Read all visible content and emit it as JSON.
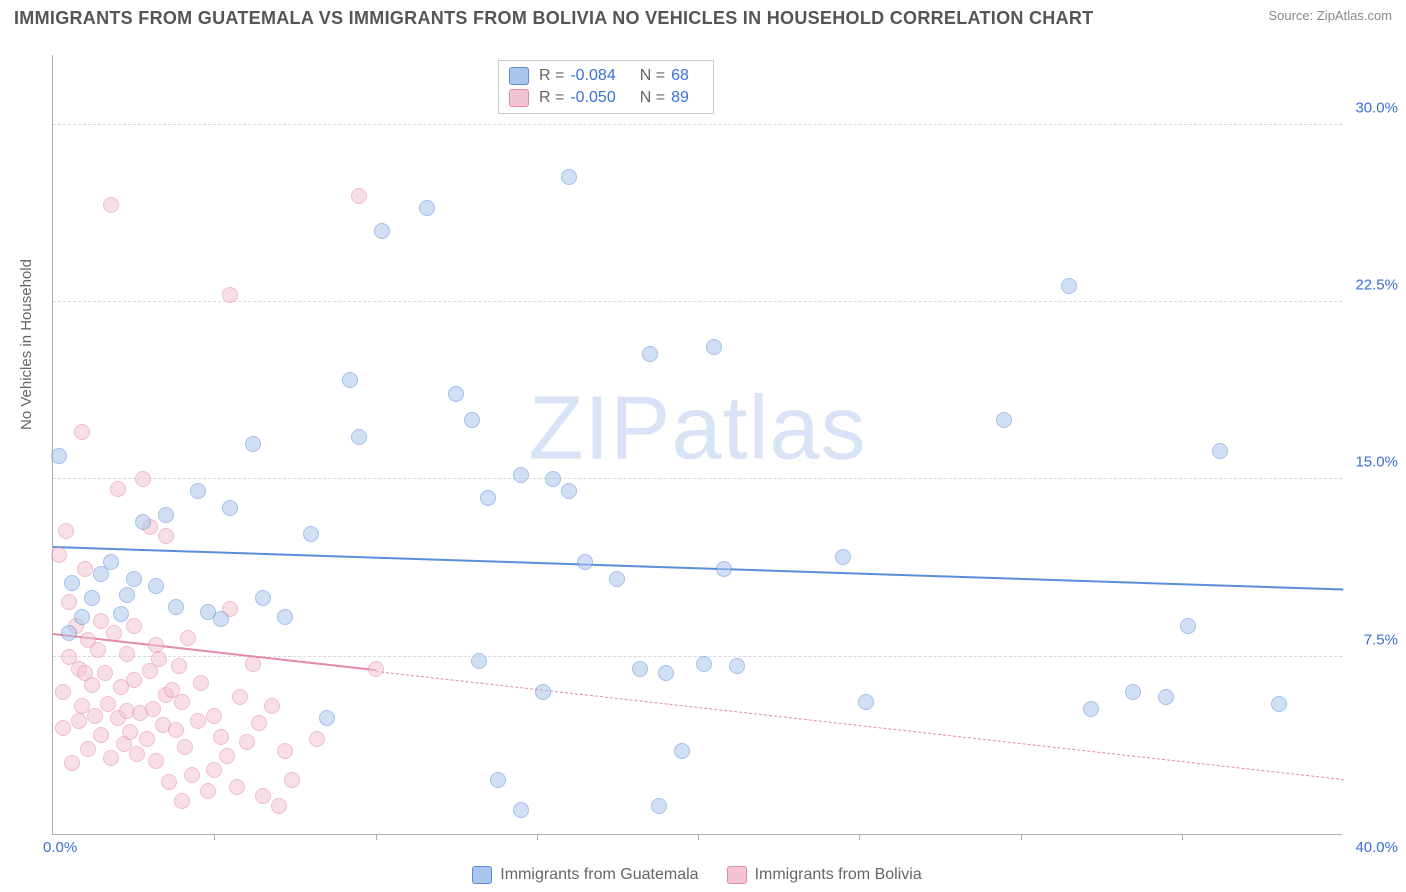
{
  "header": {
    "title": "IMMIGRANTS FROM GUATEMALA VS IMMIGRANTS FROM BOLIVIA NO VEHICLES IN HOUSEHOLD CORRELATION CHART",
    "source": "Source: ZipAtlas.com"
  },
  "watermark": {
    "text": "ZIPatlas",
    "color": "#d8e4f5"
  },
  "chart": {
    "type": "scatter",
    "background_color": "#ffffff",
    "grid_color": "#d8d8d8",
    "axis_color": "#b0b0b0",
    "ylabel": "No Vehicles in Household",
    "label_fontsize": 15,
    "label_color": "#666666",
    "ylim": [
      0,
      33
    ],
    "yticks": [
      7.5,
      15.0,
      22.5,
      30.0
    ],
    "ytick_labels": [
      "7.5%",
      "15.0%",
      "22.5%",
      "30.0%"
    ],
    "xlim": [
      0,
      40
    ],
    "xtick_step": 5,
    "xtick_origin": "0.0%",
    "xtick_max": "40.0%",
    "tick_color": "#3b6fd6",
    "tick_fontsize": 15,
    "marker_radius": 8,
    "marker_opacity": 0.55,
    "marker_border_width": 1.2,
    "series": [
      {
        "name": "Immigrants from Guatemala",
        "fill": "#aac6ec",
        "stroke": "#5b8ed8",
        "trend": {
          "x1": 0,
          "y1": 12.1,
          "x2": 40,
          "y2": 10.3,
          "solid_until_x": 40,
          "width": 2.6,
          "dash": "none"
        },
        "points": [
          [
            0.2,
            16.0
          ],
          [
            0.5,
            8.5
          ],
          [
            0.6,
            10.6
          ],
          [
            0.9,
            9.2
          ],
          [
            1.2,
            10.0
          ],
          [
            1.5,
            11.0
          ],
          [
            1.8,
            11.5
          ],
          [
            2.1,
            9.3
          ],
          [
            2.3,
            10.1
          ],
          [
            2.5,
            10.8
          ],
          [
            2.8,
            13.2
          ],
          [
            3.2,
            10.5
          ],
          [
            3.5,
            13.5
          ],
          [
            3.8,
            9.6
          ],
          [
            4.5,
            14.5
          ],
          [
            4.8,
            9.4
          ],
          [
            5.2,
            9.1
          ],
          [
            5.5,
            13.8
          ],
          [
            6.2,
            16.5
          ],
          [
            6.5,
            10.0
          ],
          [
            7.2,
            9.2
          ],
          [
            8.0,
            12.7
          ],
          [
            8.5,
            4.9
          ],
          [
            9.2,
            19.2
          ],
          [
            9.5,
            16.8
          ],
          [
            10.2,
            25.5
          ],
          [
            11.6,
            26.5
          ],
          [
            12.5,
            18.6
          ],
          [
            13.0,
            17.5
          ],
          [
            13.2,
            7.3
          ],
          [
            13.5,
            14.2
          ],
          [
            13.8,
            2.3
          ],
          [
            14.5,
            1.0
          ],
          [
            14.5,
            15.2
          ],
          [
            15.2,
            6.0
          ],
          [
            15.5,
            15.0
          ],
          [
            16.0,
            14.5
          ],
          [
            16.0,
            27.8
          ],
          [
            16.5,
            11.5
          ],
          [
            17.5,
            10.8
          ],
          [
            18.2,
            7.0
          ],
          [
            18.5,
            20.3
          ],
          [
            18.8,
            1.2
          ],
          [
            19.0,
            6.8
          ],
          [
            19.5,
            3.5
          ],
          [
            20.2,
            7.2
          ],
          [
            20.5,
            20.6
          ],
          [
            20.8,
            11.2
          ],
          [
            21.2,
            7.1
          ],
          [
            24.5,
            11.7
          ],
          [
            25.2,
            5.6
          ],
          [
            29.5,
            17.5
          ],
          [
            31.5,
            23.2
          ],
          [
            32.2,
            5.3
          ],
          [
            33.5,
            6.0
          ],
          [
            34.5,
            5.8
          ],
          [
            35.2,
            8.8
          ],
          [
            36.2,
            16.2
          ],
          [
            38.0,
            5.5
          ]
        ]
      },
      {
        "name": "Immigrants from Bolivia",
        "fill": "#f3c5d2",
        "stroke": "#e48aa5",
        "trend": {
          "x1": 0,
          "y1": 8.4,
          "x2": 40,
          "y2": 2.3,
          "solid_until_x": 10,
          "width": 2.2,
          "dash": "5,5"
        },
        "points": [
          [
            0.2,
            11.8
          ],
          [
            0.3,
            4.5
          ],
          [
            0.3,
            6.0
          ],
          [
            0.4,
            12.8
          ],
          [
            0.5,
            7.5
          ],
          [
            0.5,
            9.8
          ],
          [
            0.6,
            3.0
          ],
          [
            0.7,
            8.8
          ],
          [
            0.8,
            4.8
          ],
          [
            0.8,
            7.0
          ],
          [
            0.9,
            17.0
          ],
          [
            0.9,
            5.4
          ],
          [
            1.0,
            6.8
          ],
          [
            1.0,
            11.2
          ],
          [
            1.1,
            3.6
          ],
          [
            1.1,
            8.2
          ],
          [
            1.2,
            6.3
          ],
          [
            1.3,
            5.0
          ],
          [
            1.4,
            7.8
          ],
          [
            1.5,
            9.0
          ],
          [
            1.5,
            4.2
          ],
          [
            1.6,
            6.8
          ],
          [
            1.7,
            5.5
          ],
          [
            1.8,
            3.2
          ],
          [
            1.8,
            26.6
          ],
          [
            1.9,
            8.5
          ],
          [
            2.0,
            4.9
          ],
          [
            2.0,
            14.6
          ],
          [
            2.1,
            6.2
          ],
          [
            2.2,
            3.8
          ],
          [
            2.3,
            5.2
          ],
          [
            2.3,
            7.6
          ],
          [
            2.4,
            4.3
          ],
          [
            2.5,
            6.5
          ],
          [
            2.5,
            8.8
          ],
          [
            2.6,
            3.4
          ],
          [
            2.7,
            5.1
          ],
          [
            2.8,
            15.0
          ],
          [
            2.9,
            4.0
          ],
          [
            3.0,
            13.0
          ],
          [
            3.0,
            6.9
          ],
          [
            3.1,
            5.3
          ],
          [
            3.2,
            8.0
          ],
          [
            3.2,
            3.1
          ],
          [
            3.3,
            7.4
          ],
          [
            3.4,
            4.6
          ],
          [
            3.5,
            12.6
          ],
          [
            3.5,
            5.9
          ],
          [
            3.6,
            2.2
          ],
          [
            3.7,
            6.1
          ],
          [
            3.8,
            4.4
          ],
          [
            3.9,
            7.1
          ],
          [
            4.0,
            1.4
          ],
          [
            4.0,
            5.6
          ],
          [
            4.1,
            3.7
          ],
          [
            4.2,
            8.3
          ],
          [
            4.3,
            2.5
          ],
          [
            4.5,
            4.8
          ],
          [
            4.6,
            6.4
          ],
          [
            4.8,
            1.8
          ],
          [
            5.0,
            5.0
          ],
          [
            5.0,
            2.7
          ],
          [
            5.2,
            4.1
          ],
          [
            5.4,
            3.3
          ],
          [
            5.5,
            9.5
          ],
          [
            5.5,
            22.8
          ],
          [
            5.7,
            2.0
          ],
          [
            5.8,
            5.8
          ],
          [
            6.0,
            3.9
          ],
          [
            6.2,
            7.2
          ],
          [
            6.4,
            4.7
          ],
          [
            6.5,
            1.6
          ],
          [
            6.8,
            5.4
          ],
          [
            7.0,
            1.2
          ],
          [
            7.2,
            3.5
          ],
          [
            7.4,
            2.3
          ],
          [
            8.2,
            4.0
          ],
          [
            9.5,
            27.0
          ],
          [
            10.0,
            7.0
          ]
        ]
      }
    ],
    "legend_top": [
      {
        "swatch_series": 0,
        "r_label": "R =",
        "r_value": "-0.084",
        "n_label": "N =",
        "n_value": "68"
      },
      {
        "swatch_series": 1,
        "r_label": "R =",
        "r_value": "-0.050",
        "n_label": "N =",
        "n_value": "89"
      }
    ],
    "legend_bottom": [
      {
        "swatch_series": 0,
        "label": "Immigrants from Guatemala"
      },
      {
        "swatch_series": 1,
        "label": "Immigrants from Bolivia"
      }
    ]
  }
}
